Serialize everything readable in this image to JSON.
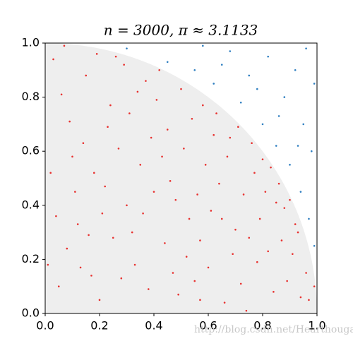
{
  "chart_data": {
    "type": "scatter",
    "title": "n = 3000, π ≈ 3.1133",
    "xlim": [
      0,
      1
    ],
    "ylim": [
      0,
      1
    ],
    "xticks": [
      {
        "value": 0,
        "label": "0.0"
      },
      0.2,
      0.4,
      0.6,
      0.8,
      {
        "value": 1,
        "label": "1.0"
      }
    ],
    "yticks": [
      {
        "value": 0,
        "label": "0.0"
      },
      0.2,
      0.4,
      0.6,
      0.8,
      {
        "value": 1,
        "label": "1.0"
      }
    ],
    "region_color": "#eeeeee",
    "series": [
      {
        "color": "#e8312f",
        "x": [
          0.05,
          0.12,
          0.2,
          0.27,
          0.33,
          0.41,
          0.48,
          0.55,
          0.62,
          0.7,
          0.77,
          0.84,
          0.91,
          0.96,
          0.03,
          0.09,
          0.15,
          0.22,
          0.29,
          0.36,
          0.43,
          0.5,
          0.57,
          0.64,
          0.71,
          0.78,
          0.85,
          0.92,
          0.02,
          0.08,
          0.14,
          0.19,
          0.25,
          0.31,
          0.38,
          0.45,
          0.52,
          0.59,
          0.66,
          0.73,
          0.8,
          0.87,
          0.94,
          0.06,
          0.11,
          0.17,
          0.24,
          0.3,
          0.37,
          0.44,
          0.51,
          0.58,
          0.65,
          0.72,
          0.79,
          0.86,
          0.93,
          0.04,
          0.1,
          0.16,
          0.23,
          0.28,
          0.35,
          0.42,
          0.49,
          0.56,
          0.63,
          0.69,
          0.76,
          0.83,
          0.89,
          0.97,
          0.07,
          0.13,
          0.18,
          0.26,
          0.32,
          0.39,
          0.46,
          0.53,
          0.6,
          0.67,
          0.74,
          0.81,
          0.88,
          0.01,
          0.21,
          0.34,
          0.47,
          0.54,
          0.61,
          0.68,
          0.75,
          0.82,
          0.9,
          0.4,
          0.57,
          0.99
        ],
        "y": [
          0.1,
          0.33,
          0.05,
          0.61,
          0.18,
          0.79,
          0.42,
          0.12,
          0.66,
          0.31,
          0.52,
          0.08,
          0.22,
          0.15,
          0.94,
          0.71,
          0.88,
          0.47,
          0.92,
          0.37,
          0.58,
          0.83,
          0.27,
          0.48,
          0.69,
          0.19,
          0.41,
          0.33,
          0.52,
          0.24,
          0.63,
          0.96,
          0.28,
          0.74,
          0.09,
          0.68,
          0.21,
          0.55,
          0.04,
          0.44,
          0.57,
          0.27,
          0.06,
          0.81,
          0.45,
          0.14,
          0.77,
          0.4,
          0.86,
          0.26,
          0.61,
          0.77,
          0.35,
          0.11,
          0.35,
          0.48,
          0.3,
          0.36,
          0.58,
          0.29,
          0.69,
          0.13,
          0.55,
          0.9,
          0.07,
          0.44,
          0.74,
          0.22,
          0.63,
          0.54,
          0.12,
          0.05,
          0.99,
          0.17,
          0.52,
          0.95,
          0.3,
          0.65,
          0.49,
          0.35,
          0.17,
          0.58,
          0.01,
          0.45,
          0.39,
          0.18,
          0.37,
          0.82,
          0.15,
          0.72,
          0.38,
          0.65,
          0.28,
          0.23,
          0.42,
          0.45,
          0.05,
          0.1
        ]
      },
      {
        "color": "#2f7fc1",
        "x": [
          0.3,
          0.45,
          0.55,
          0.62,
          0.68,
          0.72,
          0.75,
          0.8,
          0.82,
          0.85,
          0.88,
          0.9,
          0.92,
          0.94,
          0.95,
          0.97,
          0.98,
          0.99,
          0.78,
          0.65,
          0.86,
          0.93,
          0.99,
          0.58,
          0.96
        ],
        "y": [
          0.98,
          0.93,
          0.9,
          0.85,
          0.97,
          0.78,
          0.88,
          0.7,
          0.95,
          0.62,
          0.8,
          0.55,
          0.9,
          0.45,
          0.7,
          0.35,
          0.6,
          0.85,
          0.83,
          0.92,
          0.73,
          0.62,
          0.25,
          0.99,
          0.98
        ]
      }
    ]
  },
  "watermark": "http://blog.csdn.net/Hearthougan"
}
